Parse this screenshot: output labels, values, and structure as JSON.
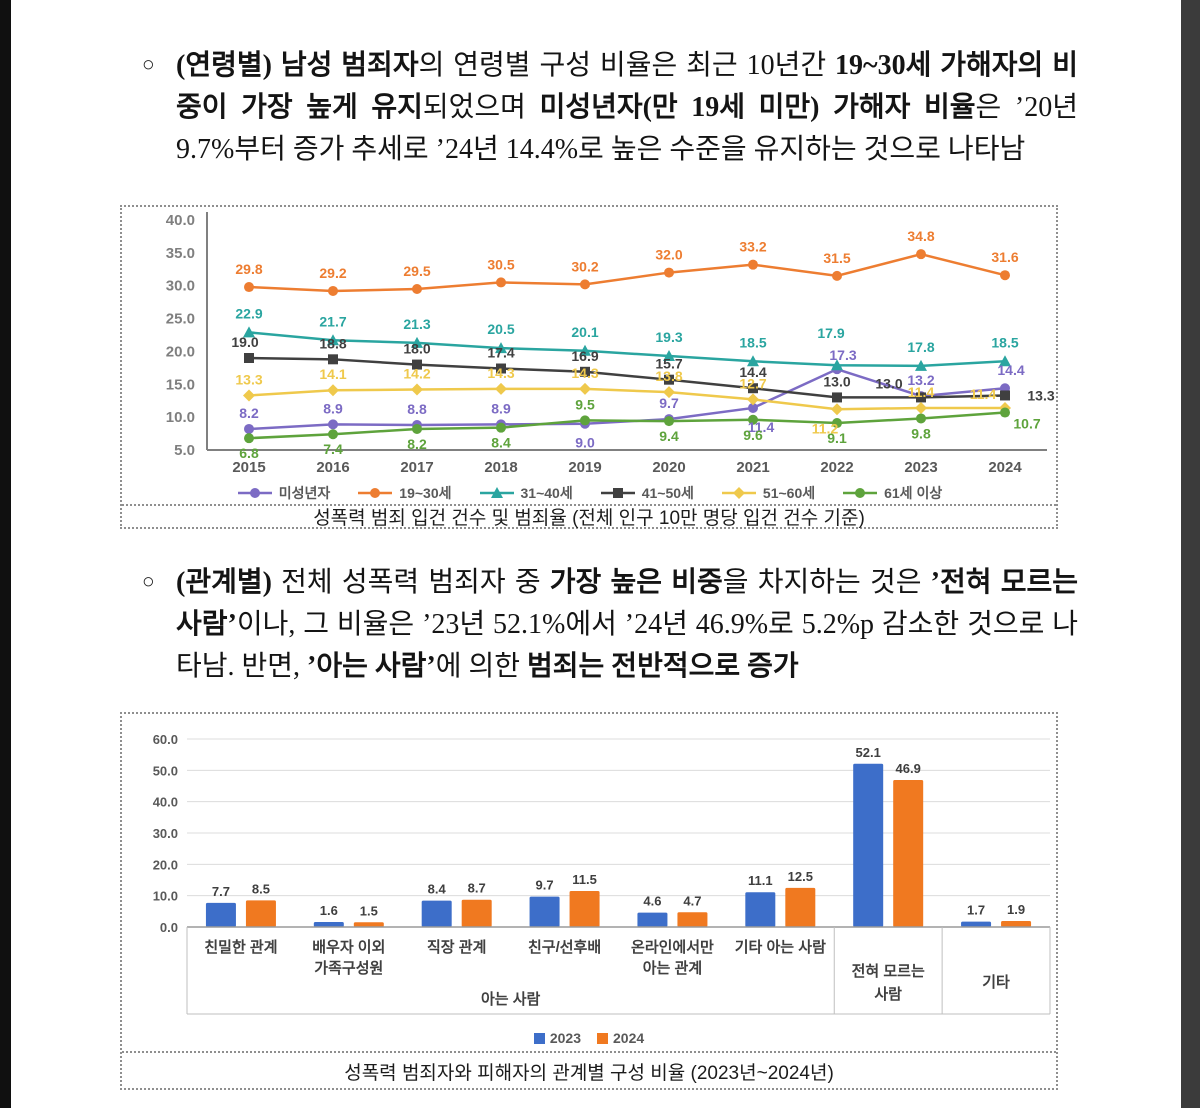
{
  "page": {
    "background": "#ffffff",
    "left_strip_color": "#101010",
    "right_strip_color": "#3b3b3b"
  },
  "paragraphs": {
    "age": {
      "bullet": "○",
      "segments": [
        {
          "text": "(연령별) 남성 범죄자",
          "bold": true
        },
        {
          "text": "의 연령별 구성 비율은 최근 10년간 ",
          "bold": false
        },
        {
          "text": "19~30세 가해자의 비중이 가장 높게 유지",
          "bold": true
        },
        {
          "text": "되었으며 ",
          "bold": false
        },
        {
          "text": "미성년자(만 19세 미만) 가해자 비율",
          "bold": true
        },
        {
          "text": "은 ’20년 9.7%부터 증가 추세로 ’24년 14.4%로 높은 수준을 유지하는 것으로 나타남",
          "bold": false
        }
      ]
    },
    "relation": {
      "bullet": "○",
      "segments": [
        {
          "text": "(관계별)",
          "bold": true
        },
        {
          "text": " 전체 성폭력 범죄자 중 ",
          "bold": false
        },
        {
          "text": "가장 높은 비중",
          "bold": true
        },
        {
          "text": "을 차지하는 것은 ",
          "bold": false
        },
        {
          "text": "’전혀 모르는 사람’",
          "bold": true
        },
        {
          "text": "이나, 그 비율은 ’23년 52.1%에서 ’24년 46.9%로 5.2%p 감소한 것으로 나타남. 반면, ",
          "bold": false
        },
        {
          "text": "’아는 사람’",
          "bold": true
        },
        {
          "text": "에 의한 ",
          "bold": false
        },
        {
          "text": "범죄는 전반적으로 증가",
          "bold": true
        }
      ]
    }
  },
  "chart_data": [
    {
      "type": "line",
      "caption": "성폭력 범죄 입건 건수 및 범죄율 (전체 인구 10만 명당 입건 건수 기준)",
      "x": [
        "2015",
        "2016",
        "2017",
        "2018",
        "2019",
        "2020",
        "2021",
        "2022",
        "2023",
        "2024"
      ],
      "ylim": [
        5.0,
        40.0
      ],
      "ytick_step": 5.0,
      "grid": false,
      "legend_position": "bottom",
      "axis_color": "#808080",
      "tick_label_color": "#7f7f7f",
      "series": [
        {
          "name": "미성년자",
          "color": "#7C6BC4",
          "marker": "circle",
          "values": [
            8.2,
            8.9,
            8.8,
            8.9,
            9.0,
            9.7,
            11.4,
            17.3,
            13.2,
            14.4
          ]
        },
        {
          "name": "19~30세",
          "color": "#ED7D31",
          "marker": "circle",
          "values": [
            29.8,
            29.2,
            29.5,
            30.5,
            30.2,
            32.0,
            33.2,
            31.5,
            34.8,
            31.6
          ]
        },
        {
          "name": "31~40세",
          "color": "#2AA5A0",
          "marker": "triangle",
          "values": [
            22.9,
            21.7,
            21.3,
            20.5,
            20.1,
            19.3,
            18.5,
            17.9,
            17.8,
            18.5
          ]
        },
        {
          "name": "41~50세",
          "color": "#404040",
          "marker": "square",
          "values": [
            19.0,
            18.8,
            18.0,
            17.4,
            16.9,
            15.7,
            14.4,
            13.0,
            13.0,
            13.3
          ]
        },
        {
          "name": "51~60세",
          "color": "#EFC94C",
          "marker": "diamond",
          "values": [
            13.3,
            14.1,
            14.2,
            14.3,
            14.3,
            13.8,
            12.7,
            11.2,
            11.4,
            11.4
          ]
        },
        {
          "name": "61세 이상",
          "color": "#5EA33C",
          "marker": "circle",
          "values": [
            6.8,
            7.4,
            8.2,
            8.4,
            9.5,
            9.4,
            9.6,
            9.1,
            9.8,
            10.7
          ]
        }
      ]
    },
    {
      "type": "bar",
      "caption": "성폭력 범죄자와 피해자의 관계별 구성 비율 (2023년~2024년)",
      "categories": [
        "친밀한 관계",
        "배우자 이외\n가족구성원",
        "직장 관계",
        "친구/선후배",
        "온라인에서만\n아는 관계",
        "기타 아는 사람",
        "전혀 모르는\n사람",
        "기타"
      ],
      "group_label": "아는 사람",
      "group_span": 6,
      "ylim": [
        0.0,
        60.0
      ],
      "ytick_step": 10.0,
      "grid": true,
      "legend_position": "bottom",
      "series": [
        {
          "name": "2023",
          "color": "#3D6EC9",
          "values": [
            7.7,
            1.6,
            8.4,
            9.7,
            4.6,
            11.1,
            52.1,
            1.7
          ]
        },
        {
          "name": "2024",
          "color": "#F07920",
          "values": [
            8.5,
            1.5,
            8.7,
            11.5,
            4.7,
            12.5,
            46.9,
            1.9
          ]
        }
      ]
    }
  ]
}
